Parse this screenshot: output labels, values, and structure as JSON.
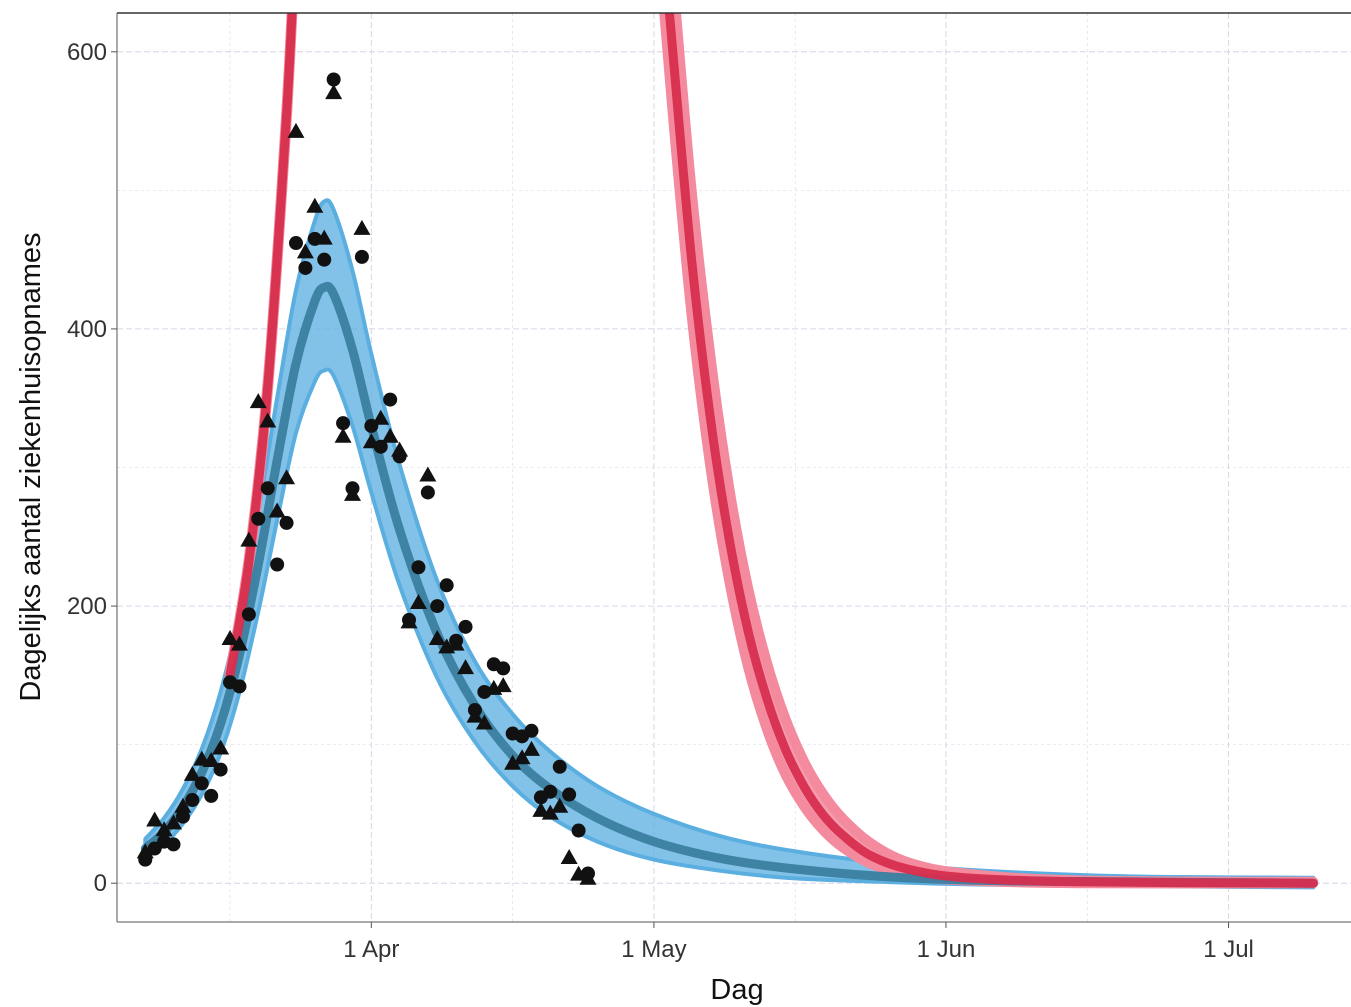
{
  "chart_data": {
    "type": "line",
    "title": "",
    "xlabel": "Dag",
    "ylabel": "Dagelijks aantal ziekenhuisopnames",
    "x_axis": {
      "type": "date",
      "range": [
        "2020-03-05",
        "2020-07-14"
      ],
      "ticks": [
        {
          "date": "2020-04-01",
          "label": "1 Apr"
        },
        {
          "date": "2020-05-01",
          "label": "1 May"
        },
        {
          "date": "2020-06-01",
          "label": "1 Jun"
        },
        {
          "date": "2020-07-01",
          "label": "1 Jul"
        }
      ]
    },
    "y_axis": {
      "range": [
        -28,
        628
      ],
      "ticks": [
        0,
        200,
        400,
        600
      ]
    },
    "grid": true,
    "legend": "none",
    "colors": {
      "blue_band": "#5aaee0",
      "blue_line": "#3a7ea0",
      "red_band": "#f48a9e",
      "red_line": "#d72e4e",
      "points": "#111111",
      "grid": "#d6d6e6"
    },
    "series": [
      {
        "kind": "ribbon-line",
        "color": "blue",
        "points": [
          {
            "x": "2020-03-08",
            "y": 25,
            "lo": 18,
            "hi": 32
          },
          {
            "x": "2020-03-10",
            "y": 37,
            "lo": 28,
            "hi": 47
          },
          {
            "x": "2020-03-12",
            "y": 55,
            "lo": 43,
            "hi": 68
          },
          {
            "x": "2020-03-14",
            "y": 80,
            "lo": 64,
            "hi": 97
          },
          {
            "x": "2020-03-16",
            "y": 115,
            "lo": 94,
            "hi": 138
          },
          {
            "x": "2020-03-18",
            "y": 165,
            "lo": 138,
            "hi": 195
          },
          {
            "x": "2020-03-20",
            "y": 230,
            "lo": 196,
            "hi": 268
          },
          {
            "x": "2020-03-22",
            "y": 305,
            "lo": 262,
            "hi": 350
          },
          {
            "x": "2020-03-24",
            "y": 375,
            "lo": 325,
            "hi": 428
          },
          {
            "x": "2020-03-26",
            "y": 420,
            "lo": 362,
            "hi": 478
          },
          {
            "x": "2020-03-27",
            "y": 430,
            "lo": 370,
            "hi": 492
          },
          {
            "x": "2020-03-28",
            "y": 425,
            "lo": 366,
            "hi": 486
          },
          {
            "x": "2020-03-30",
            "y": 385,
            "lo": 330,
            "hi": 442
          },
          {
            "x": "2020-04-01",
            "y": 330,
            "lo": 282,
            "hi": 382
          },
          {
            "x": "2020-04-04",
            "y": 255,
            "lo": 215,
            "hi": 302
          },
          {
            "x": "2020-04-08",
            "y": 180,
            "lo": 148,
            "hi": 218
          },
          {
            "x": "2020-04-12",
            "y": 128,
            "lo": 102,
            "hi": 160
          },
          {
            "x": "2020-04-16",
            "y": 92,
            "lo": 70,
            "hi": 122
          },
          {
            "x": "2020-04-20",
            "y": 68,
            "lo": 48,
            "hi": 95
          },
          {
            "x": "2020-04-25",
            "y": 47,
            "lo": 30,
            "hi": 70
          },
          {
            "x": "2020-05-01",
            "y": 30,
            "lo": 17,
            "hi": 50
          },
          {
            "x": "2020-05-08",
            "y": 18,
            "lo": 9,
            "hi": 34
          },
          {
            "x": "2020-05-15",
            "y": 11,
            "lo": 4,
            "hi": 24
          },
          {
            "x": "2020-05-25",
            "y": 5,
            "lo": 1,
            "hi": 15
          },
          {
            "x": "2020-06-05",
            "y": 2,
            "lo": -1,
            "hi": 9
          },
          {
            "x": "2020-06-20",
            "y": 1,
            "lo": -2,
            "hi": 5
          },
          {
            "x": "2020-07-10",
            "y": 0,
            "lo": -3,
            "hi": 4
          }
        ]
      },
      {
        "kind": "ribbon-line",
        "color": "red",
        "points": [
          {
            "x": "2020-03-17",
            "y": 150,
            "lo": 148,
            "hi": 152
          },
          {
            "x": "2020-03-19",
            "y": 232,
            "lo": 229,
            "hi": 235
          },
          {
            "x": "2020-03-21",
            "y": 358,
            "lo": 354,
            "hi": 362
          },
          {
            "x": "2020-03-23",
            "y": 555,
            "lo": 550,
            "hi": 560
          },
          {
            "x": "2020-03-24",
            "y": 690,
            "lo": 684,
            "hi": 696
          }
        ]
      },
      {
        "kind": "ribbon-line",
        "color": "red",
        "points": [
          {
            "x": "2020-05-01",
            "y": 760,
            "lo": 720,
            "hi": 810
          },
          {
            "x": "2020-05-03",
            "y": 600,
            "lo": 555,
            "hi": 655
          },
          {
            "x": "2020-05-05",
            "y": 450,
            "lo": 410,
            "hi": 500
          },
          {
            "x": "2020-05-07",
            "y": 335,
            "lo": 300,
            "hi": 380
          },
          {
            "x": "2020-05-09",
            "y": 248,
            "lo": 218,
            "hi": 285
          },
          {
            "x": "2020-05-11",
            "y": 182,
            "lo": 156,
            "hi": 213
          },
          {
            "x": "2020-05-13",
            "y": 133,
            "lo": 111,
            "hi": 159
          },
          {
            "x": "2020-05-15",
            "y": 96,
            "lo": 78,
            "hi": 118
          },
          {
            "x": "2020-05-17",
            "y": 69,
            "lo": 55,
            "hi": 87
          },
          {
            "x": "2020-05-19",
            "y": 49,
            "lo": 38,
            "hi": 64
          },
          {
            "x": "2020-05-21",
            "y": 35,
            "lo": 26,
            "hi": 47
          },
          {
            "x": "2020-05-24",
            "y": 20,
            "lo": 14,
            "hi": 29
          },
          {
            "x": "2020-05-28",
            "y": 10,
            "lo": 6,
            "hi": 15
          },
          {
            "x": "2020-06-03",
            "y": 4,
            "lo": 2,
            "hi": 7
          },
          {
            "x": "2020-06-15",
            "y": 1,
            "lo": 0,
            "hi": 2
          },
          {
            "x": "2020-07-10",
            "y": 0,
            "lo": 0,
            "hi": 1
          }
        ]
      },
      {
        "kind": "points",
        "shape": "circle",
        "points": [
          {
            "x": "2020-03-08",
            "y": 17
          },
          {
            "x": "2020-03-09",
            "y": 25
          },
          {
            "x": "2020-03-10",
            "y": 30
          },
          {
            "x": "2020-03-11",
            "y": 28
          },
          {
            "x": "2020-03-12",
            "y": 48
          },
          {
            "x": "2020-03-13",
            "y": 60
          },
          {
            "x": "2020-03-14",
            "y": 72
          },
          {
            "x": "2020-03-15",
            "y": 63
          },
          {
            "x": "2020-03-16",
            "y": 82
          },
          {
            "x": "2020-03-17",
            "y": 145
          },
          {
            "x": "2020-03-18",
            "y": 142
          },
          {
            "x": "2020-03-19",
            "y": 194
          },
          {
            "x": "2020-03-20",
            "y": 263
          },
          {
            "x": "2020-03-21",
            "y": 285
          },
          {
            "x": "2020-03-22",
            "y": 230
          },
          {
            "x": "2020-03-23",
            "y": 260
          },
          {
            "x": "2020-03-24",
            "y": 462
          },
          {
            "x": "2020-03-25",
            "y": 444
          },
          {
            "x": "2020-03-26",
            "y": 465
          },
          {
            "x": "2020-03-27",
            "y": 450
          },
          {
            "x": "2020-03-28",
            "y": 580
          },
          {
            "x": "2020-03-29",
            "y": 332
          },
          {
            "x": "2020-03-30",
            "y": 285
          },
          {
            "x": "2020-03-31",
            "y": 452
          },
          {
            "x": "2020-04-01",
            "y": 330
          },
          {
            "x": "2020-04-02",
            "y": 315
          },
          {
            "x": "2020-04-03",
            "y": 349
          },
          {
            "x": "2020-04-04",
            "y": 308
          },
          {
            "x": "2020-04-05",
            "y": 190
          },
          {
            "x": "2020-04-06",
            "y": 228
          },
          {
            "x": "2020-04-07",
            "y": 282
          },
          {
            "x": "2020-04-08",
            "y": 200
          },
          {
            "x": "2020-04-09",
            "y": 215
          },
          {
            "x": "2020-04-10",
            "y": 175
          },
          {
            "x": "2020-04-11",
            "y": 185
          },
          {
            "x": "2020-04-12",
            "y": 125
          },
          {
            "x": "2020-04-13",
            "y": 138
          },
          {
            "x": "2020-04-14",
            "y": 158
          },
          {
            "x": "2020-04-15",
            "y": 155
          },
          {
            "x": "2020-04-16",
            "y": 108
          },
          {
            "x": "2020-04-17",
            "y": 106
          },
          {
            "x": "2020-04-18",
            "y": 110
          },
          {
            "x": "2020-04-19",
            "y": 62
          },
          {
            "x": "2020-04-20",
            "y": 66
          },
          {
            "x": "2020-04-21",
            "y": 84
          },
          {
            "x": "2020-04-22",
            "y": 64
          },
          {
            "x": "2020-04-23",
            "y": 38
          },
          {
            "x": "2020-04-24",
            "y": 7
          }
        ]
      },
      {
        "kind": "points",
        "shape": "triangle",
        "points": [
          {
            "x": "2020-03-08",
            "y": 22
          },
          {
            "x": "2020-03-09",
            "y": 45
          },
          {
            "x": "2020-03-10",
            "y": 38
          },
          {
            "x": "2020-03-11",
            "y": 43
          },
          {
            "x": "2020-03-12",
            "y": 55
          },
          {
            "x": "2020-03-13",
            "y": 78
          },
          {
            "x": "2020-03-14",
            "y": 89
          },
          {
            "x": "2020-03-15",
            "y": 88
          },
          {
            "x": "2020-03-16",
            "y": 97
          },
          {
            "x": "2020-03-17",
            "y": 176
          },
          {
            "x": "2020-03-18",
            "y": 172
          },
          {
            "x": "2020-03-19",
            "y": 247
          },
          {
            "x": "2020-03-20",
            "y": 347
          },
          {
            "x": "2020-03-21",
            "y": 333
          },
          {
            "x": "2020-03-22",
            "y": 268
          },
          {
            "x": "2020-03-23",
            "y": 292
          },
          {
            "x": "2020-03-24",
            "y": 542
          },
          {
            "x": "2020-03-25",
            "y": 455
          },
          {
            "x": "2020-03-26",
            "y": 488
          },
          {
            "x": "2020-03-27",
            "y": 465
          },
          {
            "x": "2020-03-28",
            "y": 570
          },
          {
            "x": "2020-03-29",
            "y": 322
          },
          {
            "x": "2020-03-30",
            "y": 280
          },
          {
            "x": "2020-03-31",
            "y": 472
          },
          {
            "x": "2020-04-01",
            "y": 318
          },
          {
            "x": "2020-04-02",
            "y": 335
          },
          {
            "x": "2020-04-03",
            "y": 322
          },
          {
            "x": "2020-04-04",
            "y": 312
          },
          {
            "x": "2020-04-05",
            "y": 188
          },
          {
            "x": "2020-04-06",
            "y": 202
          },
          {
            "x": "2020-04-07",
            "y": 294
          },
          {
            "x": "2020-04-08",
            "y": 176
          },
          {
            "x": "2020-04-09",
            "y": 170
          },
          {
            "x": "2020-04-10",
            "y": 172
          },
          {
            "x": "2020-04-11",
            "y": 155
          },
          {
            "x": "2020-04-12",
            "y": 120
          },
          {
            "x": "2020-04-13",
            "y": 115
          },
          {
            "x": "2020-04-14",
            "y": 140
          },
          {
            "x": "2020-04-15",
            "y": 142
          },
          {
            "x": "2020-04-16",
            "y": 86
          },
          {
            "x": "2020-04-17",
            "y": 90
          },
          {
            "x": "2020-04-18",
            "y": 96
          },
          {
            "x": "2020-04-19",
            "y": 52
          },
          {
            "x": "2020-04-20",
            "y": 50
          },
          {
            "x": "2020-04-21",
            "y": 55
          },
          {
            "x": "2020-04-22",
            "y": 18
          },
          {
            "x": "2020-04-23",
            "y": 6
          },
          {
            "x": "2020-04-24",
            "y": 3
          }
        ]
      }
    ]
  }
}
